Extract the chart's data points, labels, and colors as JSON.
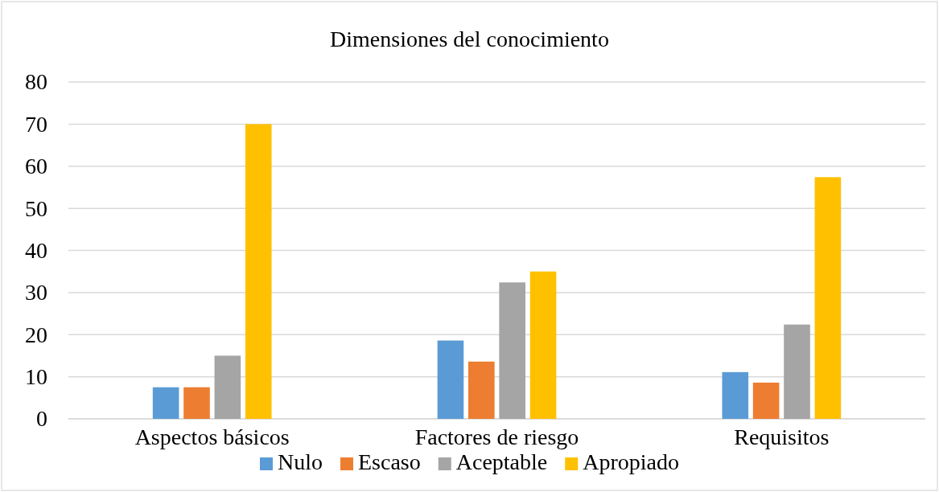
{
  "chart_data": {
    "type": "bar",
    "title": "Dimensiones del conocimiento",
    "categories": [
      "Aspectos básicos",
      "Factores de riesgo",
      "Requisitos"
    ],
    "series": [
      {
        "name": "Nulo",
        "color": "#5b9bd5",
        "values": [
          7.5,
          18.6,
          11.1
        ]
      },
      {
        "name": "Escaso",
        "color": "#ed7d31",
        "values": [
          7.5,
          13.6,
          8.6
        ]
      },
      {
        "name": "Aceptable",
        "color": "#a5a5a5",
        "values": [
          15,
          32.4,
          22.4
        ]
      },
      {
        "name": "Apropiado",
        "color": "#ffc000",
        "values": [
          70,
          35,
          57.4
        ]
      }
    ],
    "ylim": [
      0,
      80
    ],
    "yticks": [
      0,
      10,
      20,
      30,
      40,
      50,
      60,
      70,
      80
    ],
    "grid": "y",
    "legend": "bottom"
  }
}
